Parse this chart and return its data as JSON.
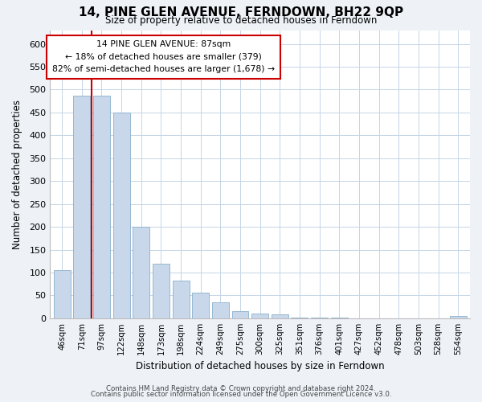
{
  "title": "14, PINE GLEN AVENUE, FERNDOWN, BH22 9QP",
  "subtitle": "Size of property relative to detached houses in Ferndown",
  "xlabel": "Distribution of detached houses by size in Ferndown",
  "ylabel": "Number of detached properties",
  "bar_labels": [
    "46sqm",
    "71sqm",
    "97sqm",
    "122sqm",
    "148sqm",
    "173sqm",
    "198sqm",
    "224sqm",
    "249sqm",
    "275sqm",
    "300sqm",
    "325sqm",
    "351sqm",
    "376sqm",
    "401sqm",
    "427sqm",
    "452sqm",
    "478sqm",
    "503sqm",
    "528sqm",
    "554sqm"
  ],
  "bar_values": [
    105,
    487,
    487,
    450,
    200,
    120,
    82,
    57,
    35,
    15,
    10,
    8,
    2,
    2,
    1,
    0,
    0,
    0,
    0,
    0,
    5
  ],
  "bar_color": "#c8d8ea",
  "bar_edge_color": "#8ab0cc",
  "ylim": [
    0,
    630
  ],
  "yticks": [
    0,
    50,
    100,
    150,
    200,
    250,
    300,
    350,
    400,
    450,
    500,
    550,
    600
  ],
  "property_line_color": "#cc0000",
  "annotation_line1": "14 PINE GLEN AVENUE: 87sqm",
  "annotation_line2": "← 18% of detached houses are smaller (379)",
  "annotation_line3": "82% of semi-detached houses are larger (1,678) →",
  "footer_line1": "Contains HM Land Registry data © Crown copyright and database right 2024.",
  "footer_line2": "Contains public sector information licensed under the Open Government Licence v3.0.",
  "background_color": "#eef2f7",
  "plot_bg_color": "#ffffff",
  "grid_color": "#c5d5e5"
}
